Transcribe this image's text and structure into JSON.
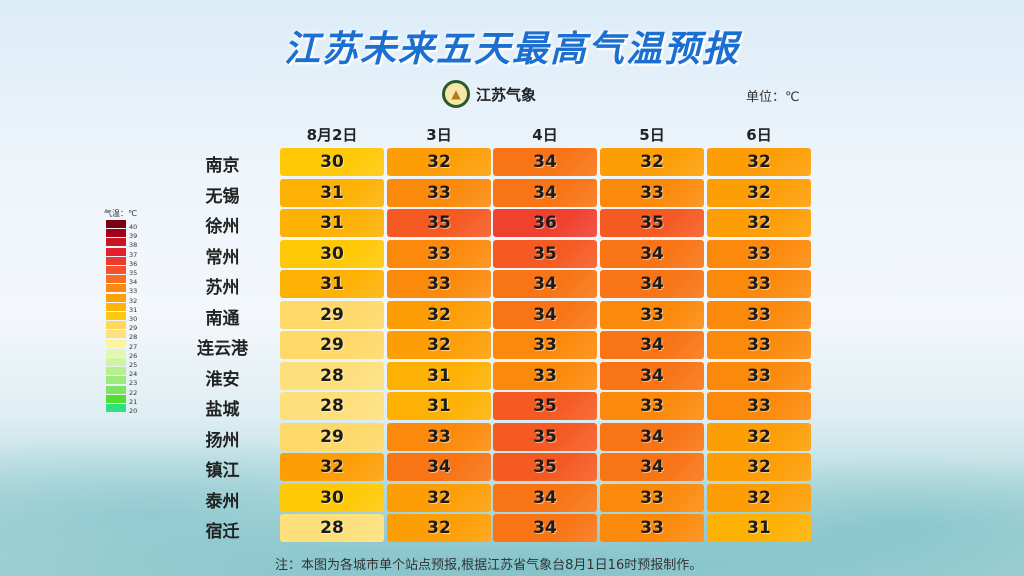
{
  "title": "江苏未来五天最高气温预报",
  "logo_text": "江苏气象",
  "unit": "单位：℃",
  "note": "注：本图为各城市单个站点预报,根据江苏省气象台8月1日16时预报制作。",
  "legend": {
    "title": "气温：℃",
    "ticks": [
      40,
      39,
      38,
      37,
      36,
      35,
      34,
      33,
      32,
      31,
      30,
      29,
      28,
      27,
      26,
      25,
      24,
      23,
      22,
      21,
      20
    ],
    "colors": [
      "#7a0010",
      "#a3001c",
      "#c81424",
      "#e3202c",
      "#ee3a2c",
      "#f4522a",
      "#f76e1e",
      "#fa8812",
      "#fca00c",
      "#feb60c",
      "#ffcb10",
      "#ffd85c",
      "#ffe080",
      "#fff39c",
      "#e4f7b2",
      "#cff4a2",
      "#b6ef90",
      "#9deb7e",
      "#7ee65e",
      "#52df30",
      "#2fe07e"
    ]
  },
  "chart_data": {
    "type": "heatmap",
    "title": "江苏未来五天最高气温预报",
    "columns": [
      "8月2日",
      "3日",
      "4日",
      "5日",
      "6日"
    ],
    "rows": [
      "南京",
      "无锡",
      "徐州",
      "常州",
      "苏州",
      "南通",
      "连云港",
      "淮安",
      "盐城",
      "扬州",
      "镇江",
      "泰州",
      "宿迁"
    ],
    "values": [
      [
        30,
        32,
        34,
        32,
        32
      ],
      [
        31,
        33,
        34,
        33,
        32
      ],
      [
        31,
        35,
        36,
        35,
        32
      ],
      [
        30,
        33,
        35,
        34,
        33
      ],
      [
        31,
        33,
        34,
        34,
        33
      ],
      [
        29,
        32,
        34,
        33,
        33
      ],
      [
        29,
        32,
        33,
        34,
        33
      ],
      [
        28,
        31,
        33,
        34,
        33
      ],
      [
        28,
        31,
        35,
        33,
        33
      ],
      [
        29,
        33,
        35,
        34,
        32
      ],
      [
        32,
        34,
        35,
        34,
        32
      ],
      [
        30,
        32,
        34,
        33,
        32
      ],
      [
        28,
        32,
        34,
        33,
        31
      ]
    ],
    "color_scale": {
      "28": "#fde07c",
      "29": "#fed868",
      "30": "#ffc806",
      "31": "#fdb104",
      "32": "#fd9e06",
      "33": "#fb8a0c",
      "34": "#f87414",
      "35": "#f55a22",
      "36": "#f0402e"
    }
  }
}
